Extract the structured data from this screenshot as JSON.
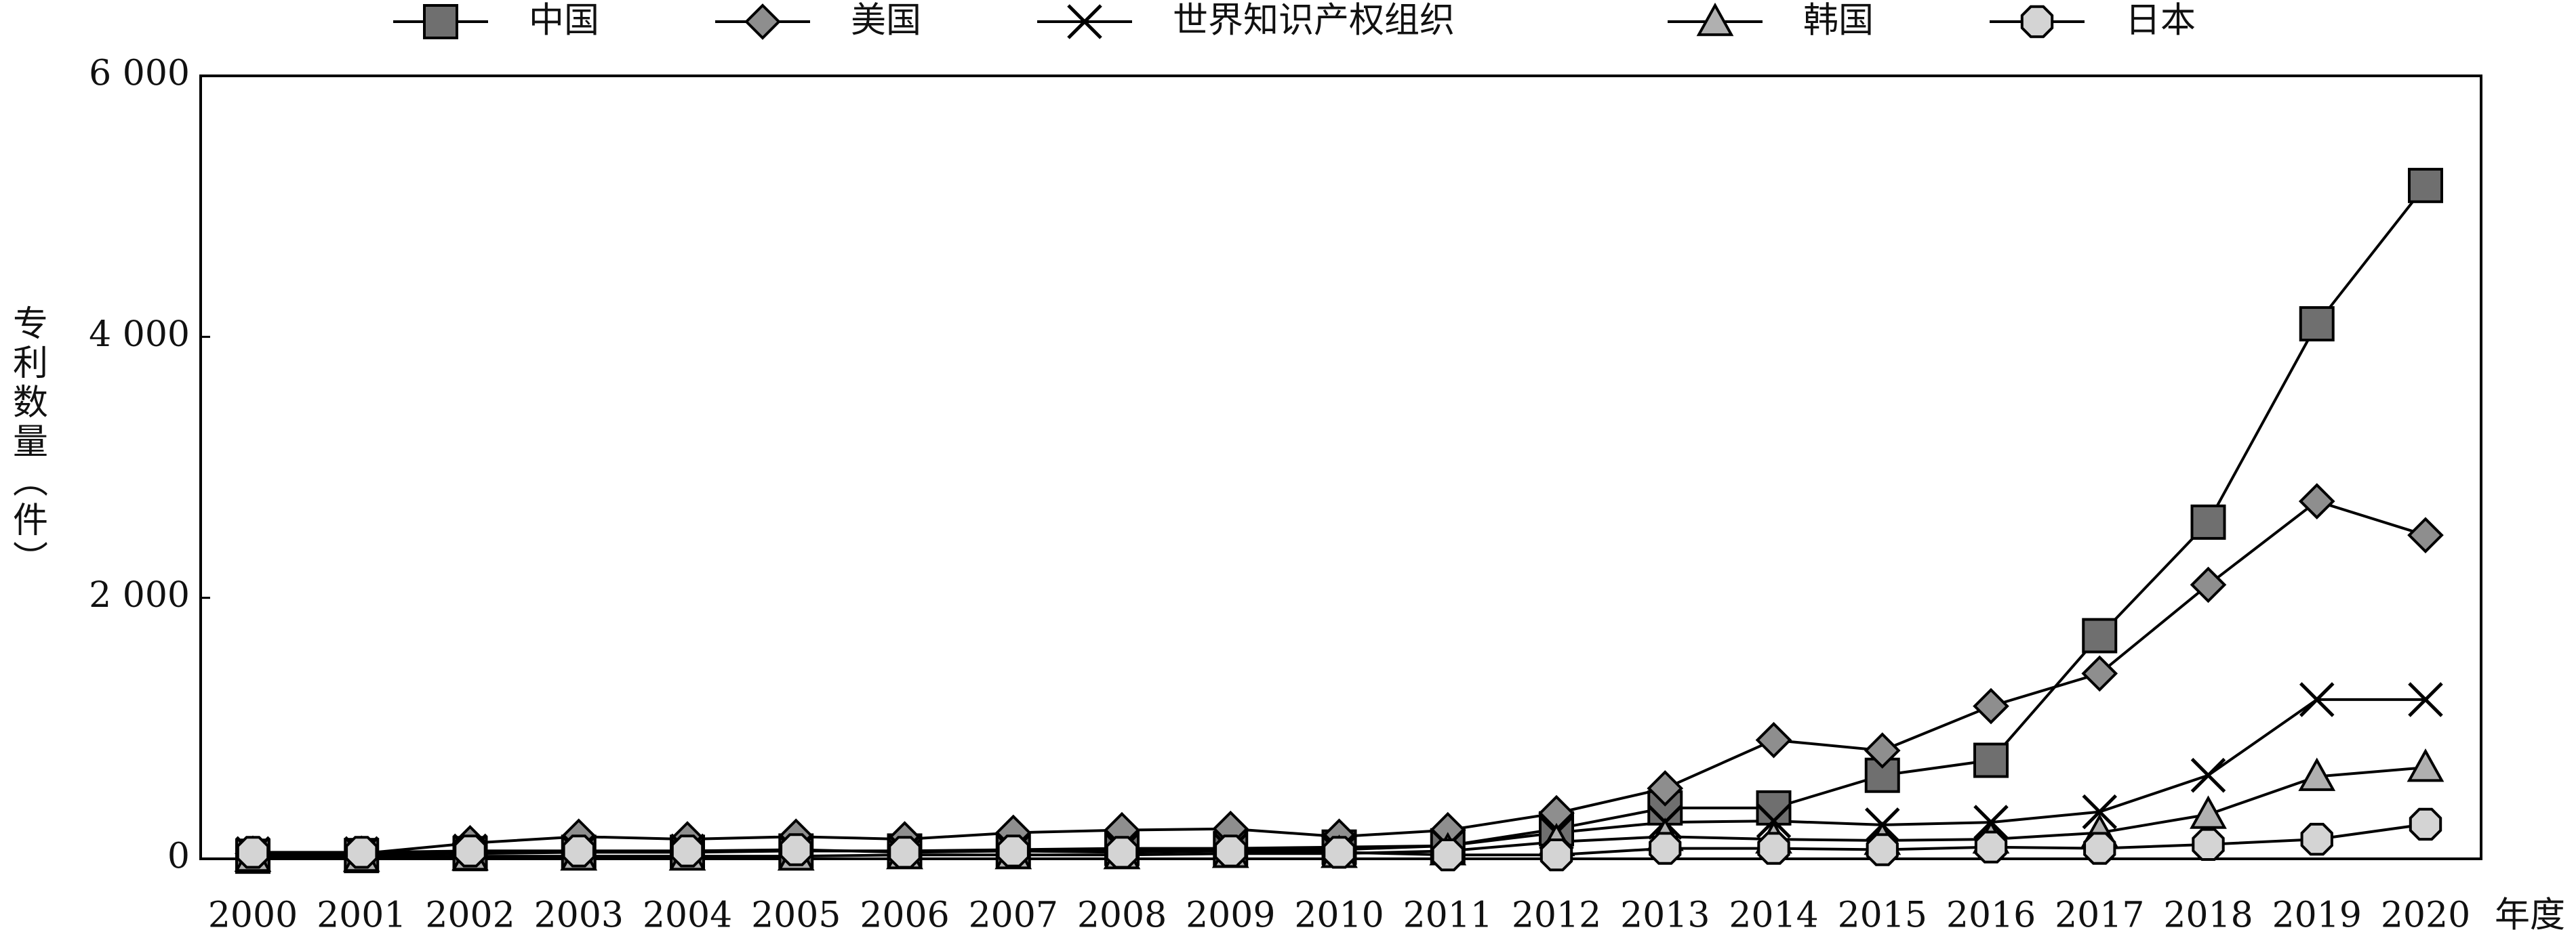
{
  "chart_data": {
    "type": "line",
    "y_label": "专利数量（件）",
    "x_label": "年度",
    "categories": [
      "2000",
      "2001",
      "2002",
      "2003",
      "2004",
      "2005",
      "2006",
      "2007",
      "2008",
      "2009",
      "2010",
      "2011",
      "2012",
      "2013",
      "2014",
      "2015",
      "2016",
      "2017",
      "2018",
      "2019",
      "2020"
    ],
    "series": [
      {
        "name": "中国",
        "color": "#6f6f6f",
        "marker": "square",
        "values": [
          20,
          25,
          40,
          50,
          50,
          60,
          60,
          70,
          80,
          80,
          90,
          100,
          230,
          390,
          390,
          640,
          755,
          1710,
          2580,
          4100,
          5160
        ]
      },
      {
        "name": "美国",
        "color": "#8e8e8e",
        "marker": "diamond",
        "values": [
          40,
          40,
          120,
          170,
          150,
          170,
          150,
          200,
          220,
          230,
          170,
          220,
          350,
          540,
          910,
          830,
          1170,
          1420,
          2100,
          2740,
          2480
        ]
      },
      {
        "name": "世界知识产权组织",
        "color": "#000000",
        "marker": "x",
        "values": [
          40,
          40,
          60,
          60,
          60,
          60,
          60,
          60,
          70,
          70,
          70,
          100,
          200,
          280,
          290,
          260,
          280,
          360,
          640,
          1220,
          1220
        ]
      },
      {
        "name": "韩国",
        "color": "#b0b0b0",
        "marker": "triangle",
        "values": [
          10,
          10,
          20,
          20,
          20,
          20,
          30,
          30,
          30,
          40,
          40,
          60,
          130,
          170,
          150,
          140,
          150,
          200,
          340,
          630,
          700
        ]
      },
      {
        "name": "日本",
        "color": "#d4d4d4",
        "marker": "circle",
        "values": [
          50,
          50,
          60,
          60,
          60,
          70,
          50,
          60,
          50,
          60,
          50,
          30,
          30,
          80,
          80,
          70,
          90,
          80,
          110,
          150,
          265
        ]
      }
    ],
    "ylim": [
      0,
      6000
    ],
    "yticks": [
      0,
      {
        "value": 2000,
        "label": "2 000"
      },
      {
        "value": 4000,
        "label": "4 000"
      },
      {
        "value": 6000,
        "label": "6 000"
      }
    ],
    "grid": false
  }
}
